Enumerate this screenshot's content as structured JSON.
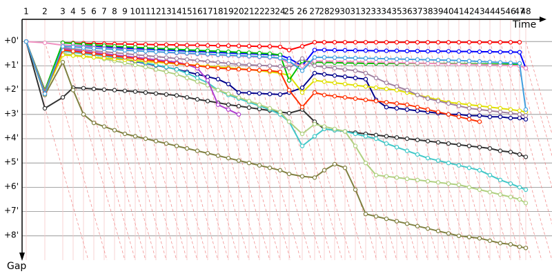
{
  "chart_data": {
    "type": "line",
    "x_label": "Time",
    "y_label": "Gap",
    "x": [
      0.6,
      3.3,
      5.9,
      7.4,
      8.9,
      10.4,
      11.9,
      13.4,
      14.9,
      16.4,
      17.9,
      19.4,
      20.9,
      22.4,
      23.9,
      25.4,
      26.9,
      28.4,
      29.9,
      31.4,
      32.9,
      34.4,
      35.9,
      37.4,
      38.7,
      40.6,
      42.4,
      43.8,
      45.3,
      46.8,
      48.3,
      49.8,
      51.3,
      52.8,
      54.3,
      55.8,
      57.3,
      58.8,
      60.3,
      61.8,
      63.3,
      64.8,
      66.3,
      67.8,
      69.3,
      70.8,
      72.1,
      73.0
    ],
    "xlim": [
      0,
      74.8
    ],
    "xticks": [
      {
        "value": 0.6,
        "label": "1"
      },
      {
        "value": 3.3,
        "label": "2"
      },
      {
        "value": 5.9,
        "label": "3"
      },
      {
        "value": 7.4,
        "label": "4"
      },
      {
        "value": 8.9,
        "label": "5"
      },
      {
        "value": 10.4,
        "label": "6"
      },
      {
        "value": 11.9,
        "label": "7"
      },
      {
        "value": 13.4,
        "label": "8"
      },
      {
        "value": 14.9,
        "label": "9"
      },
      {
        "value": 16.4,
        "label": "10"
      },
      {
        "value": 17.9,
        "label": "11"
      },
      {
        "value": 19.4,
        "label": "12"
      },
      {
        "value": 20.9,
        "label": "13"
      },
      {
        "value": 22.4,
        "label": "14"
      },
      {
        "value": 23.9,
        "label": "15"
      },
      {
        "value": 25.4,
        "label": "16"
      },
      {
        "value": 26.9,
        "label": "17"
      },
      {
        "value": 28.4,
        "label": "18"
      },
      {
        "value": 29.9,
        "label": "19"
      },
      {
        "value": 31.4,
        "label": "20"
      },
      {
        "value": 32.9,
        "label": "21"
      },
      {
        "value": 34.4,
        "label": "22"
      },
      {
        "value": 35.9,
        "label": "23"
      },
      {
        "value": 37.4,
        "label": "24"
      },
      {
        "value": 38.7,
        "label": "25"
      },
      {
        "value": 40.6,
        "label": "26"
      },
      {
        "value": 42.4,
        "label": "27"
      },
      {
        "value": 43.8,
        "label": "28"
      },
      {
        "value": 45.3,
        "label": "29"
      },
      {
        "value": 46.8,
        "label": "30"
      },
      {
        "value": 48.3,
        "label": "31"
      },
      {
        "value": 49.8,
        "label": "32"
      },
      {
        "value": 51.3,
        "label": "33"
      },
      {
        "value": 52.8,
        "label": "34"
      },
      {
        "value": 54.3,
        "label": "35"
      },
      {
        "value": 55.8,
        "label": "36"
      },
      {
        "value": 57.3,
        "label": "37"
      },
      {
        "value": 58.8,
        "label": "38"
      },
      {
        "value": 60.3,
        "label": "39"
      },
      {
        "value": 61.8,
        "label": "40"
      },
      {
        "value": 63.3,
        "label": "41"
      },
      {
        "value": 64.8,
        "label": "42"
      },
      {
        "value": 66.3,
        "label": "43"
      },
      {
        "value": 67.8,
        "label": "44"
      },
      {
        "value": 69.3,
        "label": "45"
      },
      {
        "value": 70.8,
        "label": "46"
      },
      {
        "value": 72.1,
        "label": "47"
      },
      {
        "value": 73.0,
        "label": "48"
      }
    ],
    "ylim": [
      -1,
      9
    ],
    "yticks": [
      {
        "value": 0,
        "label": "+0'"
      },
      {
        "value": 1,
        "label": "+1'"
      },
      {
        "value": 2,
        "label": "+2'"
      },
      {
        "value": 3,
        "label": "+3'"
      },
      {
        "value": 4,
        "label": "+4'"
      },
      {
        "value": 5,
        "label": "+5'"
      },
      {
        "value": 6,
        "label": "+6'"
      },
      {
        "value": 7,
        "label": "+7'"
      },
      {
        "value": 8,
        "label": "+8'"
      }
    ],
    "grid": true,
    "series": [
      {
        "color": "#ff0000",
        "values": [
          0,
          2.1,
          0.05,
          0.06,
          0.07,
          0.08,
          0.09,
          0.1,
          0.1,
          0.11,
          0.12,
          0.13,
          0.13,
          0.14,
          0.15,
          0.15,
          0.16,
          0.17,
          0.17,
          0.18,
          0.19,
          0.2,
          0.2,
          0.22,
          0.35,
          0.2,
          0.03,
          0.03,
          0.03,
          0.03,
          0.03,
          0.03,
          0.03,
          0.03,
          0.03,
          0.03,
          0.03,
          0.03,
          0.03,
          0.03,
          0.03,
          0.03,
          0.03,
          0.03,
          0.03,
          0.03,
          0.03,
          null
        ]
      },
      {
        "color": "#0000ff",
        "values": [
          0,
          2.15,
          0.15,
          0.17,
          0.19,
          0.21,
          0.23,
          0.25,
          0.27,
          0.29,
          0.31,
          0.33,
          0.35,
          0.37,
          0.39,
          0.41,
          0.43,
          0.45,
          0.47,
          0.49,
          0.5,
          0.52,
          0.54,
          0.56,
          0.7,
          1.0,
          0.35,
          0.35,
          0.36,
          0.36,
          0.37,
          0.37,
          0.38,
          0.38,
          0.38,
          0.39,
          0.39,
          0.4,
          0.4,
          0.4,
          0.41,
          0.41,
          0.42,
          0.42,
          0.43,
          0.43,
          0.44,
          1.1
        ]
      },
      {
        "color": "#00008b",
        "values": [
          0,
          2.05,
          0.3,
          0.35,
          0.42,
          0.5,
          0.58,
          0.66,
          0.74,
          0.82,
          0.9,
          0.98,
          1.06,
          1.14,
          1.25,
          1.35,
          1.45,
          1.55,
          1.75,
          2.1,
          2.12,
          2.14,
          2.16,
          2.18,
          2.1,
          1.9,
          1.3,
          1.35,
          1.4,
          1.45,
          1.5,
          1.55,
          2.4,
          2.7,
          2.75,
          2.8,
          2.85,
          2.9,
          2.95,
          3.0,
          3.0,
          3.05,
          3.05,
          3.1,
          3.1,
          3.15,
          3.15,
          3.2
        ]
      },
      {
        "color": "#303030",
        "values": [
          0,
          2.75,
          2.3,
          1.9,
          1.92,
          1.95,
          1.98,
          2.0,
          2.03,
          2.06,
          2.1,
          2.14,
          2.18,
          2.22,
          2.3,
          2.38,
          2.45,
          2.52,
          2.6,
          2.66,
          2.72,
          2.78,
          2.84,
          2.9,
          2.95,
          2.8,
          3.3,
          3.6,
          3.65,
          3.7,
          3.75,
          3.8,
          3.85,
          3.9,
          3.95,
          4.0,
          4.05,
          4.1,
          4.15,
          4.2,
          4.25,
          4.3,
          4.35,
          4.4,
          4.5,
          4.55,
          4.65,
          4.75
        ]
      },
      {
        "color": "#808040",
        "values": [
          0,
          2.2,
          0.85,
          2.0,
          3.0,
          3.35,
          3.5,
          3.65,
          3.8,
          3.9,
          4.0,
          4.1,
          4.2,
          4.3,
          4.4,
          4.5,
          4.6,
          4.7,
          4.8,
          4.9,
          5.0,
          5.1,
          5.2,
          5.3,
          5.45,
          5.55,
          5.6,
          5.3,
          5.05,
          5.2,
          6.1,
          7.1,
          7.2,
          7.3,
          7.4,
          7.5,
          7.6,
          7.7,
          7.8,
          7.9,
          8.0,
          8.05,
          8.1,
          8.2,
          8.3,
          8.35,
          8.45,
          8.5
        ]
      },
      {
        "color": "#40c8c8",
        "values": [
          0,
          2.0,
          0.4,
          0.45,
          0.5,
          0.55,
          0.6,
          0.65,
          0.72,
          0.8,
          0.88,
          0.96,
          1.05,
          1.15,
          1.3,
          1.5,
          1.7,
          2.0,
          2.2,
          2.35,
          2.5,
          2.65,
          2.8,
          3.0,
          3.3,
          4.3,
          3.9,
          3.6,
          3.65,
          3.7,
          3.8,
          3.9,
          4.0,
          4.2,
          4.35,
          4.5,
          4.65,
          4.8,
          4.9,
          5.0,
          5.1,
          5.2,
          5.3,
          5.5,
          5.7,
          5.85,
          6.0,
          6.1
        ]
      },
      {
        "color": "#b0d080",
        "values": [
          0,
          2.05,
          0.5,
          0.55,
          0.6,
          0.65,
          0.72,
          0.8,
          0.88,
          0.96,
          1.05,
          1.15,
          1.25,
          1.35,
          1.5,
          1.65,
          1.8,
          2.0,
          2.15,
          2.3,
          2.45,
          2.6,
          2.75,
          2.9,
          3.3,
          3.8,
          3.4,
          3.5,
          3.6,
          3.7,
          4.3,
          5.0,
          5.5,
          5.55,
          5.6,
          5.65,
          5.7,
          5.75,
          5.8,
          5.85,
          5.9,
          6.0,
          6.1,
          6.2,
          6.3,
          6.4,
          6.5,
          6.65
        ]
      },
      {
        "color": "#e0e000",
        "values": [
          0,
          2.1,
          0.55,
          0.58,
          0.62,
          0.65,
          0.68,
          0.72,
          0.75,
          0.78,
          0.82,
          0.85,
          0.88,
          0.92,
          0.95,
          0.98,
          1.02,
          1.05,
          1.08,
          1.12,
          1.15,
          1.2,
          1.25,
          1.3,
          1.4,
          2.1,
          1.6,
          1.65,
          1.7,
          1.75,
          1.8,
          1.85,
          1.9,
          1.95,
          2.0,
          2.1,
          2.2,
          2.3,
          2.4,
          2.5,
          2.55,
          2.6,
          2.65,
          2.7,
          2.75,
          2.8,
          2.85,
          2.9
        ]
      },
      {
        "color": "#00c000",
        "values": [
          0,
          2.0,
          0.05,
          0.08,
          0.11,
          0.14,
          0.17,
          0.2,
          0.22,
          0.24,
          0.26,
          0.28,
          0.3,
          0.32,
          0.34,
          0.36,
          0.38,
          0.4,
          0.42,
          0.44,
          0.46,
          0.48,
          0.5,
          0.55,
          1.6,
          0.8,
          0.85,
          0.86,
          0.87,
          0.88,
          0.89,
          0.9,
          0.9,
          0.9,
          0.9,
          0.9,
          0.9,
          0.9,
          0.9,
          0.9,
          0.91,
          0.91,
          0.92,
          0.92,
          0.93,
          0.93,
          0.94,
          null
        ]
      },
      {
        "color": "#b040d0",
        "values": [
          0,
          2.1,
          0.3,
          0.35,
          0.4,
          0.45,
          0.5,
          0.55,
          0.6,
          0.65,
          0.7,
          0.75,
          0.8,
          0.85,
          0.95,
          1.1,
          1.6,
          2.6,
          2.8,
          3.0,
          null,
          null,
          null,
          null,
          null,
          null,
          null,
          null,
          null,
          null,
          null,
          null,
          null,
          null,
          null,
          null,
          null,
          null,
          null,
          null,
          null,
          null,
          null,
          null,
          null,
          null,
          null,
          null
        ]
      },
      {
        "color": "#a080a0",
        "values": [
          0,
          2.05,
          0.25,
          0.3,
          0.34,
          0.38,
          0.42,
          0.46,
          0.5,
          0.54,
          0.58,
          0.62,
          0.66,
          0.7,
          0.74,
          0.78,
          0.82,
          0.86,
          0.9,
          0.94,
          0.96,
          0.98,
          1.0,
          1.02,
          1.1,
          0.7,
          1.0,
          1.05,
          1.1,
          1.15,
          1.2,
          1.3,
          1.5,
          1.7,
          1.85,
          2.0,
          2.2,
          2.35,
          2.45,
          2.55,
          2.65,
          2.75,
          2.8,
          2.85,
          2.9,
          2.95,
          3.0,
          3.05
        ]
      },
      {
        "color": "#ff3000",
        "values": [
          0,
          2.1,
          0.35,
          0.4,
          0.45,
          0.5,
          0.55,
          0.6,
          0.65,
          0.7,
          0.75,
          0.8,
          0.85,
          0.9,
          0.95,
          1.0,
          1.05,
          1.1,
          1.12,
          1.14,
          1.16,
          1.18,
          1.2,
          1.25,
          2.0,
          2.7,
          2.1,
          2.2,
          2.25,
          2.3,
          2.35,
          2.4,
          2.45,
          2.5,
          2.55,
          2.6,
          2.7,
          2.8,
          2.9,
          3.0,
          3.1,
          3.2,
          3.3,
          null,
          null,
          null,
          null,
          null
        ]
      },
      {
        "color": "#f090c0",
        "values": [
          0,
          0.05,
          0.15,
          0.18,
          0.21,
          0.24,
          0.27,
          0.3,
          0.33,
          0.36,
          0.39,
          0.42,
          0.45,
          0.48,
          0.5,
          0.52,
          0.54,
          0.56,
          0.58,
          0.6,
          0.62,
          0.64,
          0.66,
          0.7,
          0.9,
          1.0,
          0.8,
          0.8,
          0.81,
          0.82,
          0.83,
          0.84,
          0.85,
          0.86,
          0.87,
          0.88,
          0.89,
          0.9,
          0.91,
          0.92,
          0.93,
          0.94,
          0.95,
          0.96,
          0.97,
          0.98,
          1.0,
          1.1
        ]
      },
      {
        "color": "#40a0e0",
        "values": [
          0,
          2.15,
          0.2,
          0.22,
          0.25,
          0.28,
          0.3,
          0.33,
          0.36,
          0.38,
          0.4,
          0.42,
          0.44,
          0.46,
          0.48,
          0.5,
          0.52,
          0.54,
          0.56,
          0.58,
          0.6,
          0.62,
          0.64,
          0.68,
          0.8,
          1.2,
          0.65,
          0.65,
          0.66,
          0.67,
          0.68,
          0.69,
          0.7,
          0.71,
          0.72,
          0.73,
          0.74,
          0.75,
          0.76,
          0.77,
          0.78,
          0.8,
          0.82,
          0.84,
          0.86,
          0.88,
          0.9,
          2.8
        ]
      }
    ]
  }
}
